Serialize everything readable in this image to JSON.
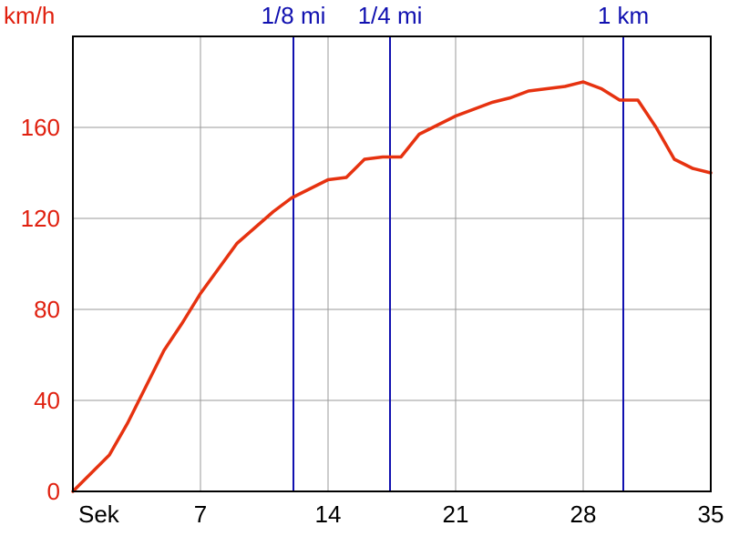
{
  "chart_data": {
    "type": "line",
    "title": "",
    "xlabel": "Sek",
    "ylabel": "km/h",
    "xlim": [
      0,
      35
    ],
    "ylim": [
      0,
      200
    ],
    "x_ticks": [
      7,
      14,
      21,
      28,
      35
    ],
    "y_ticks": [
      0,
      40,
      80,
      120,
      160
    ],
    "grid": true,
    "legend": "none",
    "series": [
      {
        "color": "#e63210",
        "x": [
          0,
          1,
          2,
          3,
          4,
          5,
          6,
          7,
          8,
          9,
          10,
          11,
          12,
          13,
          14,
          15,
          16,
          17,
          18,
          19,
          20,
          21,
          22,
          23,
          24,
          25,
          26,
          27,
          28,
          29,
          30,
          31,
          32,
          33,
          34,
          35
        ],
        "y": [
          0,
          8,
          16,
          30,
          46,
          62,
          74,
          87,
          98,
          109,
          116,
          123,
          129,
          133,
          137,
          138,
          146,
          147,
          147,
          157,
          161,
          165,
          168,
          171,
          173,
          176,
          177,
          178,
          180,
          177,
          172,
          172,
          160,
          146,
          142,
          140
        ]
      }
    ],
    "vertical_markers": [
      {
        "label": "1/8 mi",
        "x": 12.1,
        "color": "#1010b0"
      },
      {
        "label": "1/4 mi",
        "x": 17.4,
        "color": "#1010b0"
      },
      {
        "label": "1 km",
        "x": 30.2,
        "color": "#1010b0"
      }
    ]
  }
}
